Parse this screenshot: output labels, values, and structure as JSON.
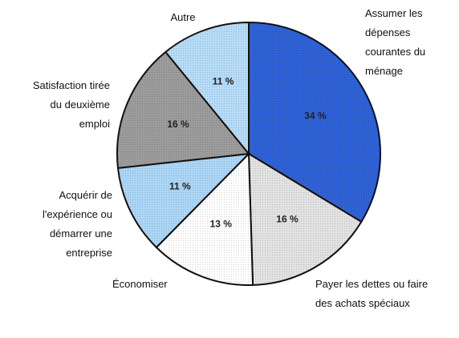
{
  "chart_data": {
    "type": "pie",
    "categories": [
      "Assumer les dépenses courantes du ménage",
      "Payer les dettes ou faire des achats spéciaux",
      "Économiser",
      "Acquérir de l'expérience ou démarrer une entreprise",
      "Satisfaction tirée du deuxième emploi",
      "Autre"
    ],
    "values": [
      34,
      16,
      13,
      11,
      16,
      11
    ],
    "value_labels": [
      "34 %",
      "16 %",
      "13 %",
      "11 %",
      "16 %",
      "11 %"
    ],
    "colors": [
      "#2f62d6",
      "#e2e2e2",
      "#ffffff",
      "#acd6f6",
      "#9c9c9c",
      "#b6dcf8"
    ]
  }
}
